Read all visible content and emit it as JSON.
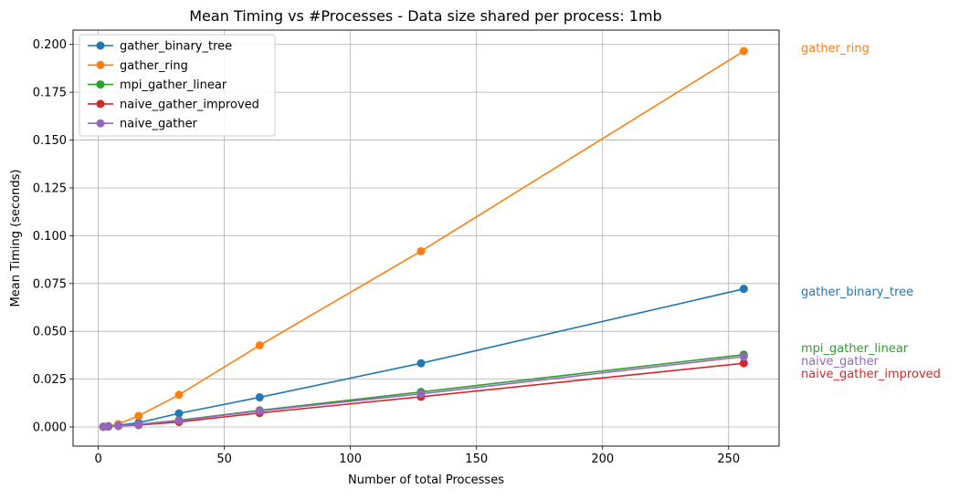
{
  "chart_data": {
    "type": "line",
    "title": "Mean Timing vs #Processes - Data size shared per process: 1mb",
    "xlabel": "Number of total Processes",
    "ylabel": "Mean Timing (seconds)",
    "xlim": [
      -10,
      270
    ],
    "ylim": [
      -0.01,
      0.2075
    ],
    "xticks": [
      0,
      50,
      100,
      150,
      200,
      250
    ],
    "xtick_labels": [
      "0",
      "50",
      "100",
      "150",
      "200",
      "250"
    ],
    "yticks": [
      0,
      0.025,
      0.05,
      0.075,
      0.1,
      0.125,
      0.15,
      0.175,
      0.2
    ],
    "ytick_labels": [
      "0.000",
      "0.025",
      "0.050",
      "0.075",
      "0.100",
      "0.125",
      "0.150",
      "0.175",
      "0.200"
    ],
    "grid": true,
    "legend_position": "top-left",
    "x": [
      2,
      4,
      8,
      16,
      32,
      64,
      128,
      256
    ],
    "series": [
      {
        "name": "gather_binary_tree",
        "color": "#1f77b4",
        "values": [
          0.0001,
          0.0003,
          0.0009,
          0.0022,
          0.0071,
          0.0155,
          0.0333,
          0.0722
        ]
      },
      {
        "name": "gather_ring",
        "color": "#ff7f0e",
        "values": [
          0.0002,
          0.0005,
          0.0015,
          0.0058,
          0.0168,
          0.0427,
          0.0919,
          0.1965
        ]
      },
      {
        "name": "mpi_gather_linear",
        "color": "#2ca02c",
        "values": [
          0.0001,
          0.0002,
          0.0006,
          0.0013,
          0.0035,
          0.0087,
          0.0183,
          0.0378
        ]
      },
      {
        "name": "naive_gather_improved",
        "color": "#d62728",
        "values": [
          0.0001,
          0.0002,
          0.0005,
          0.001,
          0.0026,
          0.0073,
          0.0158,
          0.0333
        ]
      },
      {
        "name": "naive_gather",
        "color": "#9467bd",
        "values": [
          0.0001,
          0.0002,
          0.0006,
          0.0013,
          0.0033,
          0.0084,
          0.0173,
          0.0368
        ]
      }
    ],
    "end_labels": [
      {
        "text": "gather_ring",
        "color": "#ff7f0e"
      },
      {
        "text": "gather_binary_tree",
        "color": "#1f77b4"
      },
      {
        "text": "mpi_gather_linear",
        "color": "#2ca02c"
      },
      {
        "text": "naive_gather",
        "color": "#9467bd"
      },
      {
        "text": "naive_gather_improved",
        "color": "#d62728"
      }
    ]
  }
}
